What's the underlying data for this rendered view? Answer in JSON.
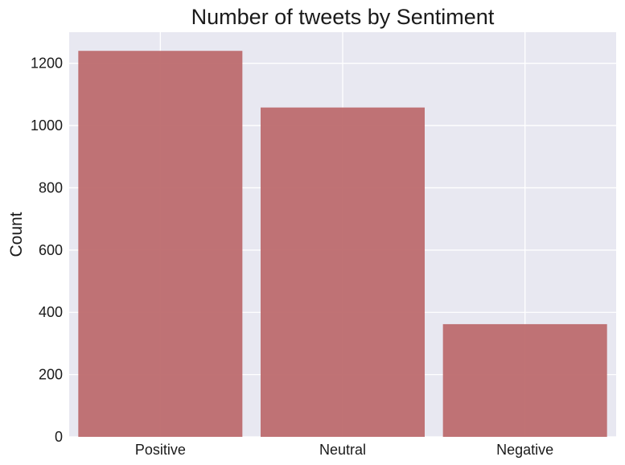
{
  "chart_data": {
    "type": "bar",
    "title": "Number of tweets by Sentiment",
    "xlabel": "",
    "ylabel": "Count",
    "categories": [
      "Positive",
      "Neutral",
      "Negative"
    ],
    "values": [
      1240,
      1058,
      362
    ],
    "ylim": [
      0,
      1300
    ],
    "yticks": [
      0,
      200,
      400,
      600,
      800,
      1000,
      1200
    ],
    "grid": true,
    "colors": {
      "bar": "#bd6c6e",
      "background": "#e8e8f1",
      "grid": "#ffffff"
    }
  }
}
